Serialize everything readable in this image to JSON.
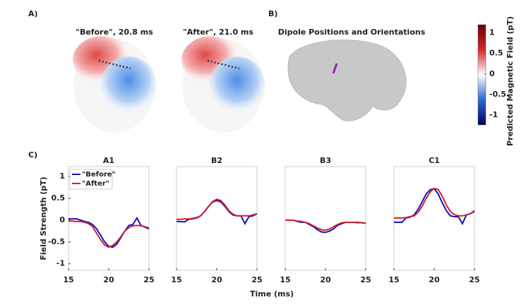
{
  "panels": {
    "a": {
      "label": "A)",
      "titles": [
        "\"Before\", 20.8 ms",
        "\"After\", 21.0 ms"
      ]
    },
    "b": {
      "label": "B)",
      "title": "Dipole Positions and Orientations"
    },
    "c": {
      "label": "C)",
      "xlabel": "Time (ms)"
    }
  },
  "colorbar": {
    "label": "Predicted Magnetic Field (pT)",
    "lim": [
      -1.24,
      1.2
    ],
    "ticks": [
      -1,
      -0.5,
      0,
      0.5,
      1
    ]
  },
  "chart_data": [
    {
      "type": "line",
      "title": "A1",
      "ylabel": "Field Strength (pT)",
      "legend": "upper left",
      "x": [
        15,
        15.5,
        16,
        16.5,
        17,
        17.5,
        18,
        18.5,
        19,
        19.5,
        20,
        20.5,
        21,
        21.5,
        22,
        22.5,
        23,
        23.5,
        24,
        24.5,
        25
      ],
      "series": [
        {
          "name": "\"Before\"",
          "color": "#1515b5",
          "values": [
            0.03,
            0.03,
            0.03,
            0.0,
            -0.03,
            -0.05,
            -0.1,
            -0.2,
            -0.35,
            -0.5,
            -0.6,
            -0.62,
            -0.55,
            -0.4,
            -0.25,
            -0.12,
            -0.1,
            0.05,
            -0.12,
            -0.16,
            -0.2
          ]
        },
        {
          "name": "\"After\"",
          "color": "#d0202e",
          "values": [
            -0.02,
            -0.02,
            -0.03,
            -0.03,
            -0.05,
            -0.08,
            -0.15,
            -0.3,
            -0.45,
            -0.57,
            -0.62,
            -0.58,
            -0.5,
            -0.38,
            -0.25,
            -0.17,
            -0.13,
            -0.12,
            -0.13,
            -0.15,
            -0.18
          ]
        }
      ],
      "xlim": [
        15,
        25
      ],
      "ylim": [
        -1.15,
        1.23
      ],
      "xticks": [
        15,
        20,
        25
      ],
      "yticks": [
        -1,
        -0.5,
        0,
        0.5,
        1
      ]
    },
    {
      "type": "line",
      "title": "B2",
      "x": [
        15,
        15.5,
        16,
        16.5,
        17,
        17.5,
        18,
        18.5,
        19,
        19.5,
        20,
        20.5,
        21,
        21.5,
        22,
        22.5,
        23,
        23.5,
        24,
        24.5,
        25
      ],
      "series": [
        {
          "color": "#1515b5",
          "values": [
            -0.03,
            -0.03,
            -0.04,
            0.02,
            0.03,
            0.05,
            0.1,
            0.2,
            0.32,
            0.42,
            0.45,
            0.42,
            0.32,
            0.2,
            0.12,
            0.1,
            0.1,
            -0.08,
            0.08,
            0.1,
            0.15
          ]
        },
        {
          "color": "#d0202e",
          "values": [
            0.02,
            0.02,
            0.03,
            0.03,
            0.04,
            0.06,
            0.1,
            0.2,
            0.32,
            0.43,
            0.48,
            0.45,
            0.35,
            0.22,
            0.14,
            0.1,
            0.1,
            0.1,
            0.1,
            0.12,
            0.15
          ]
        }
      ],
      "xlim": [
        15,
        25
      ],
      "ylim": [
        -1.15,
        1.23
      ],
      "xticks": [
        15,
        20,
        25
      ]
    },
    {
      "type": "line",
      "title": "B3",
      "x": [
        15,
        15.5,
        16,
        16.5,
        17,
        17.5,
        18,
        18.5,
        19,
        19.5,
        20,
        20.5,
        21,
        21.5,
        22,
        22.5,
        23,
        23.5,
        24,
        24.5,
        25
      ],
      "series": [
        {
          "color": "#1515b5",
          "values": [
            0.0,
            0.0,
            0.0,
            -0.03,
            -0.05,
            -0.05,
            -0.1,
            -0.15,
            -0.22,
            -0.27,
            -0.28,
            -0.25,
            -0.2,
            -0.12,
            -0.08,
            -0.05,
            -0.05,
            -0.05,
            -0.05,
            -0.06,
            -0.07
          ]
        },
        {
          "color": "#d0202e",
          "values": [
            0.0,
            0.0,
            0.0,
            -0.02,
            -0.03,
            -0.05,
            -0.08,
            -0.13,
            -0.18,
            -0.22,
            -0.23,
            -0.2,
            -0.15,
            -0.1,
            -0.06,
            -0.05,
            -0.05,
            -0.05,
            -0.06,
            -0.06,
            -0.07
          ]
        }
      ],
      "xlim": [
        15,
        25
      ],
      "ylim": [
        -1.15,
        1.23
      ],
      "xticks": [
        15,
        20,
        25
      ]
    },
    {
      "type": "line",
      "title": "C1",
      "x": [
        15,
        15.5,
        16,
        16.5,
        17,
        17.5,
        18,
        18.5,
        19,
        19.5,
        20,
        20.5,
        21,
        21.5,
        22,
        22.5,
        23,
        23.5,
        24,
        24.5,
        25
      ],
      "series": [
        {
          "color": "#1515b5",
          "values": [
            -0.05,
            -0.05,
            -0.05,
            0.05,
            0.07,
            0.12,
            0.25,
            0.42,
            0.6,
            0.7,
            0.72,
            0.6,
            0.4,
            0.22,
            0.1,
            0.08,
            0.08,
            -0.08,
            0.12,
            0.15,
            0.2
          ]
        },
        {
          "color": "#d0202e",
          "values": [
            0.05,
            0.05,
            0.05,
            0.06,
            0.08,
            0.1,
            0.18,
            0.32,
            0.5,
            0.65,
            0.73,
            0.7,
            0.55,
            0.35,
            0.2,
            0.13,
            0.1,
            0.1,
            0.12,
            0.15,
            0.22
          ]
        }
      ],
      "xlim": [
        15,
        25
      ],
      "ylim": [
        -1.15,
        1.23
      ],
      "xticks": [
        15,
        20,
        25
      ]
    }
  ]
}
